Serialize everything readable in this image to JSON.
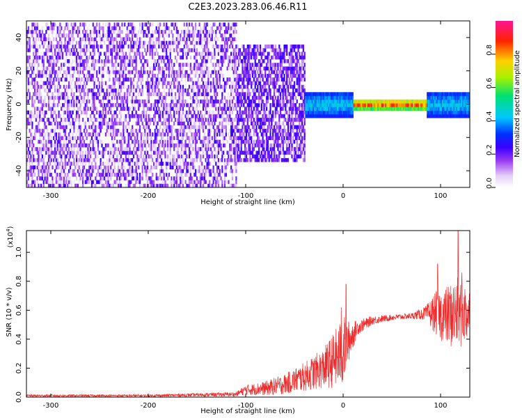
{
  "title": "C2E3.2023.283.06.46.R11",
  "colors": {
    "snr_line": "#ee2a2a",
    "spectrogram_palette": [
      "#ffffff",
      "#e9d9fb",
      "#c89af2",
      "#8a2be2",
      "#5b00ff",
      "#0a1aff",
      "#00c8ff",
      "#00e070",
      "#b8f000",
      "#ffd000",
      "#ff2200",
      "#ff1493"
    ]
  },
  "chart_data": [
    {
      "id": "spectrogram",
      "type": "heatmap",
      "xlabel": "Height of straight line (km)",
      "ylabel": "Frequency (Hz)",
      "xlim": [
        -325,
        130
      ],
      "ylim": [
        -50,
        50
      ],
      "xticks": [
        -300,
        -200,
        -100,
        0,
        100
      ],
      "xtick_labels": [
        "-300",
        "-200",
        "-100",
        "0",
        "100"
      ],
      "yticks": [
        -40,
        -20,
        0,
        20,
        40
      ],
      "ytick_labels": [
        "-40",
        "-20",
        "0",
        "20",
        "40"
      ],
      "colorbar": {
        "label": "Normalized spectral amplitude",
        "range": [
          0,
          1
        ],
        "ticks": [
          0,
          0.2,
          0.4,
          0.6,
          0.8
        ],
        "tick_labels": [
          "0.0",
          "0.2",
          "0.4",
          "0.6",
          "0.8"
        ]
      },
      "description_regions": [
        {
          "x_range": [
            -325,
            -110
          ],
          "freq_range": [
            -50,
            50
          ],
          "amplitude": [
            0.0,
            0.2
          ]
        },
        {
          "x_range": [
            -110,
            -40
          ],
          "freq_range": [
            -35,
            35
          ],
          "amplitude": [
            0.1,
            0.25
          ]
        },
        {
          "x_range": [
            -40,
            10
          ],
          "freq_range": [
            -8,
            8
          ],
          "amplitude": [
            0.2,
            0.5
          ]
        },
        {
          "x_range": [
            10,
            85
          ],
          "freq_range": [
            -3,
            3
          ],
          "amplitude": [
            0.4,
            1.0
          ]
        },
        {
          "x_range": [
            85,
            130
          ],
          "freq_range": [
            -8,
            8
          ],
          "amplitude": [
            0.2,
            0.5
          ]
        }
      ]
    },
    {
      "id": "snr",
      "type": "line",
      "xlabel": "Height of straight line (km)",
      "ylabel": "SNR (10 * v/v)",
      "y_multiplier_label": "(x10",
      "y_multiplier_exp": "4",
      "y_multiplier_close": ")",
      "xlim": [
        -325,
        130
      ],
      "ylim": [
        0,
        1.15
      ],
      "xticks": [
        -300,
        -200,
        -100,
        0,
        100
      ],
      "xtick_labels": [
        "-300",
        "-200",
        "-100",
        "0",
        "100"
      ],
      "yticks": [
        0,
        0.2,
        0.4,
        0.6,
        0.8,
        1.0
      ],
      "ytick_labels": [
        "0.0",
        "0.2",
        "0.4",
        "0.6",
        "0.8",
        "1.0"
      ],
      "envelope": {
        "x": [
          -325,
          -200,
          -110,
          -100,
          -80,
          -60,
          -40,
          -20,
          -5,
          0,
          5,
          15,
          30,
          50,
          70,
          85,
          95,
          105,
          115,
          120,
          130
        ],
        "mean": [
          0.01,
          0.01,
          0.02,
          0.05,
          0.06,
          0.09,
          0.14,
          0.2,
          0.28,
          0.32,
          0.38,
          0.48,
          0.53,
          0.55,
          0.56,
          0.58,
          0.58,
          0.56,
          0.57,
          0.58,
          0.58
        ],
        "noise": [
          0.008,
          0.008,
          0.015,
          0.035,
          0.05,
          0.07,
          0.1,
          0.14,
          0.22,
          0.25,
          0.15,
          0.05,
          0.03,
          0.02,
          0.02,
          0.05,
          0.15,
          0.2,
          0.25,
          0.25,
          0.18
        ]
      },
      "peaks": [
        {
          "x": -2,
          "y": 0.62
        },
        {
          "x": 3,
          "y": 0.78
        },
        {
          "x": 97,
          "y": 0.92
        },
        {
          "x": 118,
          "y": 1.15
        },
        {
          "x": 122,
          "y": 0.86
        }
      ]
    }
  ]
}
